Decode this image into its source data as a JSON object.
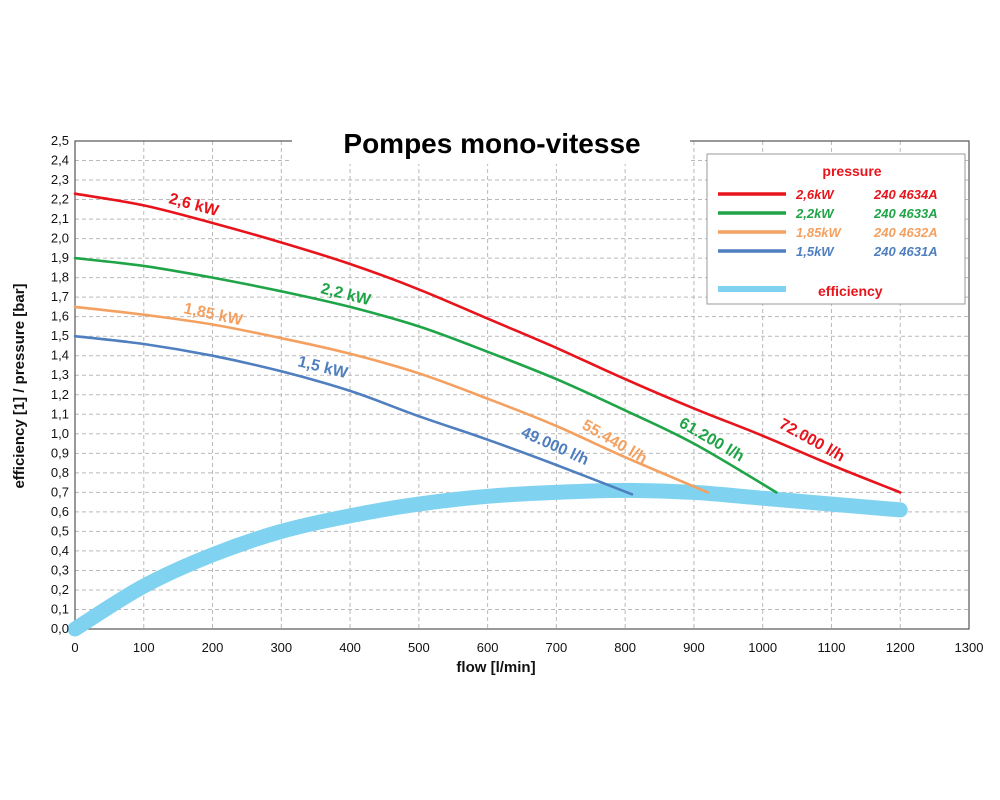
{
  "chart_data": {
    "type": "line",
    "title": "Pompes mono-vitesse",
    "xlabel": "flow [l/min]",
    "ylabel": "efficiency [1] / pressure [bar]",
    "xlim": [
      0,
      1300
    ],
    "ylim": [
      0,
      2.5
    ],
    "x_ticks": [
      "0",
      "100",
      "200",
      "300",
      "400",
      "500",
      "600",
      "700",
      "800",
      "900",
      "1000",
      "1100",
      "1200",
      "1300"
    ],
    "y_ticks": [
      "0,0",
      "0,1",
      "0,2",
      "0,3",
      "0,4",
      "0,5",
      "0,6",
      "0,7",
      "0,8",
      "0,9",
      "1,0",
      "1,1",
      "1,2",
      "1,3",
      "1,4",
      "1,5",
      "1,6",
      "1,7",
      "1,8",
      "1,9",
      "2,0",
      "2,1",
      "2,2",
      "2,3",
      "2,4",
      "2,5"
    ],
    "grid": true,
    "legend": {
      "placement": "top-right",
      "heading": "pressure",
      "efficiency_label": "efficiency"
    },
    "series": [
      {
        "key": "p26",
        "color": "#e8141c",
        "legend_power": "2,6kW",
        "legend_code": "240 4634A",
        "curve_label": "2,6 kW",
        "end_label": "72.000 l/h",
        "x": [
          0,
          100,
          200,
          300,
          400,
          500,
          600,
          700,
          800,
          900,
          1000,
          1100,
          1200
        ],
        "y": [
          2.23,
          2.17,
          2.08,
          1.98,
          1.87,
          1.74,
          1.59,
          1.44,
          1.28,
          1.13,
          0.99,
          0.84,
          0.7
        ]
      },
      {
        "key": "p22",
        "color": "#1fa447",
        "legend_power": "2,2kW",
        "legend_code": "240 4633A",
        "curve_label": "2,2 kW",
        "end_label": "61.200 l/h",
        "x": [
          0,
          100,
          200,
          300,
          400,
          500,
          600,
          700,
          800,
          900,
          1020
        ],
        "y": [
          1.9,
          1.86,
          1.8,
          1.73,
          1.65,
          1.55,
          1.42,
          1.28,
          1.12,
          0.95,
          0.7
        ]
      },
      {
        "key": "p185",
        "color": "#f4a060",
        "legend_power": "1,85kW",
        "legend_code": "240 4632A",
        "curve_label": "1,85 kW",
        "end_label": "55.440 l/h",
        "x": [
          0,
          100,
          200,
          300,
          400,
          500,
          600,
          700,
          800,
          920
        ],
        "y": [
          1.65,
          1.61,
          1.56,
          1.49,
          1.41,
          1.31,
          1.18,
          1.04,
          0.88,
          0.7
        ]
      },
      {
        "key": "p15",
        "color": "#4f7fbf",
        "legend_power": "1,5kW",
        "legend_code": "240 4631A",
        "curve_label": "1,5 kW",
        "end_label": "49.000 l/h",
        "x": [
          0,
          100,
          200,
          300,
          400,
          500,
          600,
          700,
          810
        ],
        "y": [
          1.5,
          1.46,
          1.4,
          1.32,
          1.22,
          1.09,
          0.97,
          0.84,
          0.69
        ]
      }
    ],
    "efficiency": {
      "color": "#7fd3f0",
      "x": [
        0,
        100,
        200,
        300,
        400,
        500,
        600,
        700,
        800,
        900,
        1000,
        1100,
        1200
      ],
      "y": [
        0.0,
        0.22,
        0.38,
        0.5,
        0.58,
        0.64,
        0.68,
        0.7,
        0.71,
        0.7,
        0.67,
        0.64,
        0.61
      ]
    }
  }
}
